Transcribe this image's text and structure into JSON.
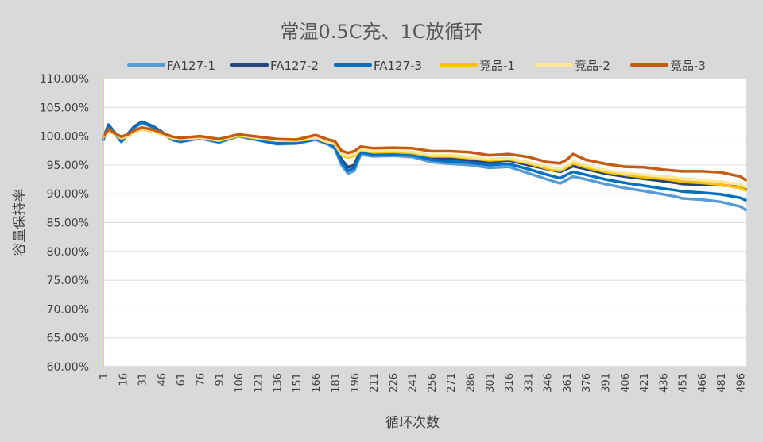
{
  "chart_data": {
    "type": "line",
    "title": "常温0.5C充、1C放循环",
    "xlabel": "循环次数",
    "ylabel": "容量保持率",
    "ylim": [
      60,
      110
    ],
    "y_ticks": [
      "110.00%",
      "105.00%",
      "100.00%",
      "95.00%",
      "90.00%",
      "85.00%",
      "80.00%",
      "75.00%",
      "70.00%",
      "65.00%",
      "60.00%"
    ],
    "x_ticks": [
      "1",
      "16",
      "31",
      "46",
      "61",
      "76",
      "91",
      "106",
      "121",
      "136",
      "151",
      "166",
      "181",
      "196",
      "211",
      "226",
      "241",
      "256",
      "271",
      "286",
      "301",
      "316",
      "331",
      "346",
      "361",
      "376",
      "391",
      "406",
      "421",
      "436",
      "451",
      "466",
      "481",
      "496"
    ],
    "xlim": [
      1,
      500
    ],
    "grid": true,
    "legend_position": "top",
    "x": [
      1,
      5,
      10,
      15,
      20,
      25,
      31,
      40,
      46,
      55,
      61,
      76,
      91,
      106,
      121,
      136,
      151,
      166,
      176,
      181,
      186,
      191,
      196,
      201,
      211,
      226,
      241,
      256,
      271,
      286,
      301,
      316,
      331,
      346,
      356,
      361,
      366,
      376,
      391,
      406,
      421,
      436,
      446,
      451,
      466,
      481,
      496,
      500
    ],
    "series": [
      {
        "name": "FA127-1",
        "color": "#5b9bd5",
        "values": [
          99.3,
          101.8,
          100.4,
          99.0,
          100.2,
          101.5,
          102.3,
          101.5,
          100.6,
          99.3,
          99.0,
          99.6,
          98.9,
          100.0,
          99.3,
          98.6,
          98.7,
          99.4,
          98.5,
          97.8,
          95.0,
          93.5,
          94.0,
          96.8,
          96.5,
          96.6,
          96.4,
          95.5,
          95.2,
          95.0,
          94.5,
          94.7,
          93.6,
          92.5,
          91.8,
          92.4,
          93.0,
          92.5,
          91.7,
          91.0,
          90.5,
          89.9,
          89.5,
          89.2,
          89.0,
          88.6,
          87.8,
          87.2
        ]
      },
      {
        "name": "FA127-2",
        "color": "#264478",
        "values": [
          99.7,
          102.0,
          100.6,
          99.3,
          100.4,
          101.7,
          102.5,
          101.7,
          100.8,
          99.5,
          99.2,
          99.8,
          99.1,
          100.2,
          99.5,
          98.9,
          99.0,
          99.7,
          98.9,
          98.3,
          96.0,
          94.6,
          95.0,
          97.6,
          97.2,
          97.2,
          97.0,
          96.3,
          96.1,
          95.8,
          95.5,
          95.8,
          95.0,
          94.3,
          93.8,
          94.3,
          94.8,
          94.3,
          93.5,
          93.0,
          92.6,
          92.2,
          91.9,
          91.7,
          91.6,
          91.5,
          91.2,
          90.8
        ]
      },
      {
        "name": "FA127-3",
        "color": "#0070c0",
        "values": [
          99.5,
          101.9,
          100.5,
          99.1,
          100.3,
          101.6,
          102.4,
          101.6,
          100.7,
          99.4,
          99.1,
          99.7,
          99.0,
          100.1,
          99.4,
          98.7,
          98.8,
          99.5,
          98.7,
          98.0,
          95.5,
          94.0,
          94.5,
          97.2,
          96.8,
          96.9,
          96.7,
          95.9,
          95.6,
          95.4,
          95.0,
          95.2,
          94.3,
          93.3,
          92.7,
          93.3,
          93.8,
          93.3,
          92.5,
          91.9,
          91.4,
          90.9,
          90.6,
          90.4,
          90.2,
          89.9,
          89.3,
          88.9
        ]
      },
      {
        "name": "竞品-1",
        "color": "#ffc000",
        "values": [
          99.8,
          101.0,
          100.3,
          99.6,
          100.0,
          100.8,
          101.2,
          100.8,
          100.4,
          99.6,
          99.4,
          99.7,
          99.2,
          100.1,
          99.6,
          99.2,
          99.2,
          99.6,
          98.9,
          98.6,
          96.8,
          96.3,
          96.6,
          97.6,
          97.2,
          97.3,
          97.1,
          96.5,
          96.5,
          96.2,
          95.8,
          96.0,
          95.3,
          94.4,
          94.0,
          94.6,
          95.3,
          94.6,
          93.8,
          93.3,
          92.9,
          92.6,
          92.3,
          92.1,
          91.9,
          91.6,
          91.0,
          90.6
        ]
      },
      {
        "name": "竞品-2",
        "color": "#ffe699",
        "values": [
          99.9,
          101.1,
          100.4,
          99.7,
          100.1,
          100.9,
          101.3,
          100.9,
          100.5,
          99.7,
          99.5,
          99.8,
          99.3,
          100.2,
          99.7,
          99.3,
          99.3,
          99.7,
          99.0,
          98.7,
          97.0,
          96.5,
          96.8,
          97.8,
          97.4,
          97.5,
          97.3,
          96.7,
          96.7,
          96.4,
          96.0,
          96.2,
          95.5,
          94.7,
          94.3,
          94.9,
          95.6,
          94.9,
          94.1,
          93.6,
          93.3,
          93.0,
          92.8,
          92.6,
          92.4,
          92.1,
          91.6,
          91.2
        ]
      },
      {
        "name": "竞品-3",
        "color": "#c55a11",
        "values": [
          100.0,
          101.2,
          100.5,
          99.9,
          100.3,
          101.0,
          101.5,
          101.1,
          100.6,
          99.9,
          99.7,
          100.0,
          99.5,
          100.3,
          99.9,
          99.5,
          99.4,
          100.2,
          99.4,
          99.1,
          97.5,
          97.1,
          97.4,
          98.2,
          97.9,
          98.0,
          97.9,
          97.4,
          97.4,
          97.2,
          96.7,
          96.9,
          96.4,
          95.5,
          95.3,
          95.9,
          96.9,
          95.9,
          95.2,
          94.7,
          94.6,
          94.2,
          94.0,
          93.9,
          93.9,
          93.7,
          93.0,
          92.4
        ]
      }
    ]
  }
}
